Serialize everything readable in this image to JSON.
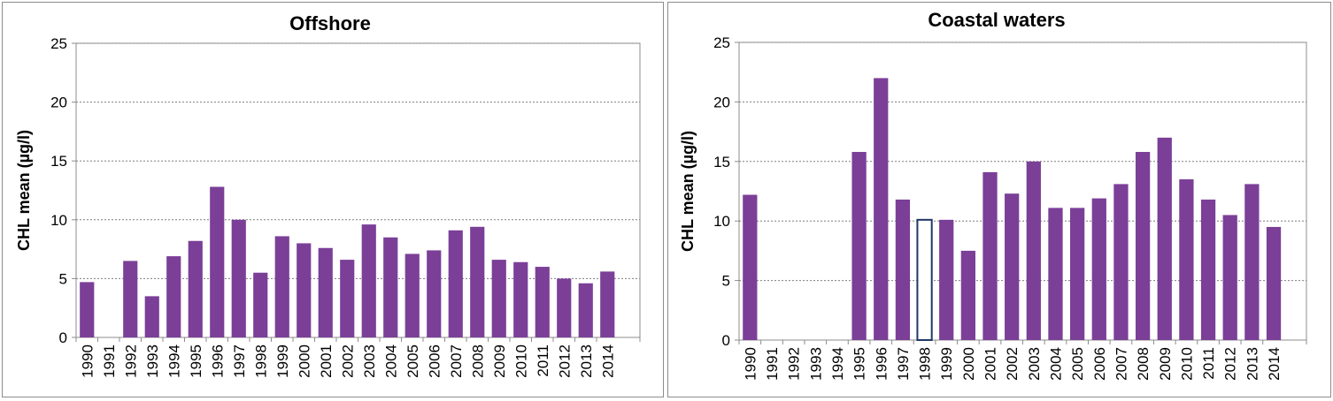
{
  "chart_data": [
    {
      "type": "bar",
      "title": "Offshore",
      "ylabel": "CHL mean (µg/l)",
      "xlabel": "",
      "ylim": [
        0,
        25
      ],
      "yticks": [
        0,
        5,
        10,
        15,
        20,
        25
      ],
      "grid": true,
      "bar_color": "#7b3f98",
      "categories": [
        "1990",
        "1991",
        "1992",
        "1993",
        "1994",
        "1995",
        "1996",
        "1997",
        "1998",
        "1999",
        "2000",
        "2001",
        "2002",
        "2003",
        "2004",
        "2005",
        "2006",
        "2007",
        "2008",
        "2009",
        "2010",
        "2011",
        "2012",
        "2013",
        "2014"
      ],
      "values": [
        4.7,
        null,
        6.5,
        3.5,
        6.9,
        8.2,
        12.8,
        10.0,
        5.5,
        8.6,
        8.0,
        7.6,
        6.6,
        9.6,
        8.5,
        7.1,
        7.4,
        9.1,
        9.4,
        6.6,
        6.4,
        6.0,
        5.0,
        4.6,
        5.6
      ]
    },
    {
      "type": "bar",
      "title": "Coastal waters",
      "ylabel": "CHL mean (µg/l)",
      "xlabel": "",
      "ylim": [
        0,
        25
      ],
      "yticks": [
        0,
        5,
        10,
        15,
        20,
        25
      ],
      "grid": true,
      "bar_color": "#7b3f98",
      "highlight_color": "#1f3864",
      "highlight_category": "1998",
      "categories": [
        "1990",
        "1991",
        "1992",
        "1993",
        "1994",
        "1995",
        "1996",
        "1997",
        "1998",
        "1999",
        "2000",
        "2001",
        "2002",
        "2003",
        "2004",
        "2005",
        "2006",
        "2007",
        "2008",
        "2009",
        "2010",
        "2011",
        "2012",
        "2013",
        "2014"
      ],
      "values": [
        12.2,
        null,
        null,
        null,
        null,
        15.8,
        22.0,
        11.8,
        10.1,
        10.1,
        7.5,
        14.1,
        12.3,
        15.0,
        11.1,
        11.1,
        11.9,
        13.1,
        15.8,
        17.0,
        13.5,
        11.8,
        10.5,
        13.1,
        9.5
      ]
    }
  ]
}
